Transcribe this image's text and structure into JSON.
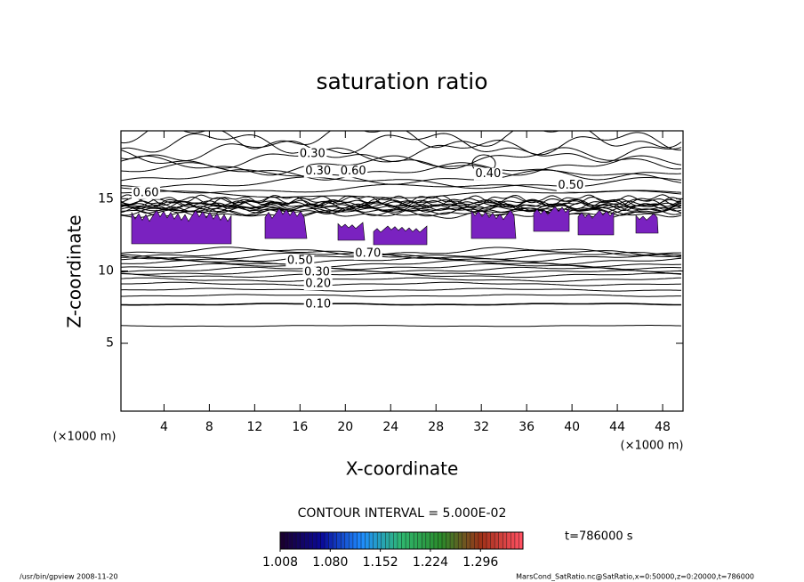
{
  "chart_data": {
    "type": "contour",
    "title": "saturation ratio",
    "xlabel": "X-coordinate",
    "ylabel": "Z-coordinate",
    "x_unit": "(×1000 m)",
    "y_unit": "(×1000 m)",
    "xlim": [
      0.2,
      49.8
    ],
    "xticks": [
      4,
      8,
      12,
      16,
      20,
      24,
      28,
      32,
      36,
      40,
      44,
      48
    ],
    "ylim": [
      0.3,
      19.7
    ],
    "yticks": [
      5,
      10,
      15
    ],
    "contour_labels": [
      {
        "label": "0.30",
        "x": 17.1,
        "z": 18.1
      },
      {
        "label": "0.30",
        "x": 17.6,
        "z": 16.9
      },
      {
        "label": "0.60",
        "x": 20.7,
        "z": 16.9
      },
      {
        "label": "0.40",
        "x": 32.6,
        "z": 16.7
      },
      {
        "label": "0.50",
        "x": 39.9,
        "z": 15.9
      },
      {
        "label": "0.60",
        "x": 2.4,
        "z": 15.4
      },
      {
        "label": "0.70",
        "x": 22.0,
        "z": 11.2
      },
      {
        "label": "0.50",
        "x": 16.0,
        "z": 10.7
      },
      {
        "label": "0.30",
        "x": 17.5,
        "z": 9.9
      },
      {
        "label": "0.20",
        "x": 17.6,
        "z": 9.1
      },
      {
        "label": "0.10",
        "x": 17.6,
        "z": 7.7
      }
    ],
    "contour_interval": "CONTOUR INTERVAL = 5.000E-02",
    "fill_color": "#7a22c0",
    "colorbar": {
      "lim": [
        1.008,
        1.357
      ],
      "ticks": [
        1.008,
        {
          "value": 1.08,
          "label": "1.080"
        },
        1.152,
        1.224,
        1.296
      ],
      "colormap": [
        "#1a0030",
        "#0a0a9a",
        "#1e8cff",
        "#2fb870",
        "#2a8a2a",
        "#a03018",
        "#ff5060"
      ]
    },
    "time_label": "t=786000 s",
    "footer_left": "/usr/bin/gpview   2008-11-20",
    "footer_right": "MarsCond_SatRatio.nc@SatRatio,x=0:50000,z=0:20000,t=786000"
  }
}
